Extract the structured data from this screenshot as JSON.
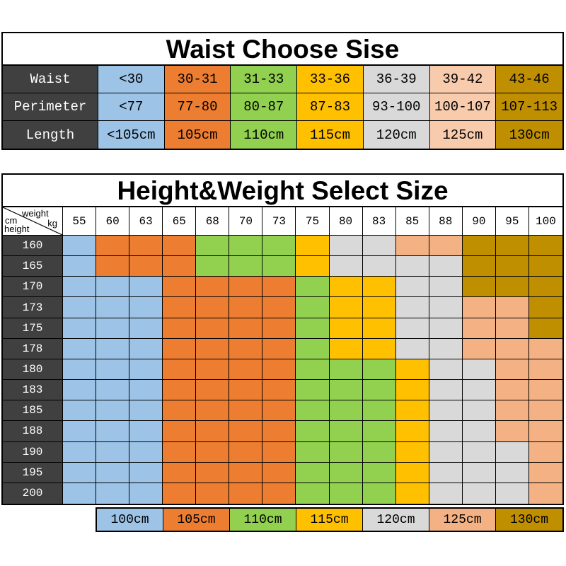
{
  "chart_data": [
    {
      "type": "table",
      "title": "Waist Choose Sise",
      "header_bg": "#404040",
      "column_colors": [
        "#9DC3E6",
        "#ED7D31",
        "#92D050",
        "#FFC000",
        "#D9D9D9",
        "#F8CBAD",
        "#BF8F00"
      ],
      "rows": [
        {
          "label": "Waist",
          "values": [
            "<30",
            "30-31",
            "31-33",
            "33-36",
            "36-39",
            "39-42",
            "43-46"
          ]
        },
        {
          "label": "Perimeter",
          "values": [
            "<77",
            "77-80",
            "80-87",
            "87-83",
            "93-100",
            "100-107",
            "107-113"
          ]
        },
        {
          "label": "Length",
          "values": [
            "<105cm",
            "105cm",
            "110cm",
            "115cm",
            "120cm",
            "125cm",
            "130cm"
          ]
        }
      ]
    },
    {
      "type": "heatmap",
      "title": "Height&Weight Select Size",
      "header_bg": "#404040",
      "corner": {
        "weight_label": "weight",
        "weight_unit": "kg",
        "height_unit": "cm",
        "height_label": "height"
      },
      "weights_kg": [
        "55",
        "60",
        "63",
        "65",
        "68",
        "70",
        "73",
        "75",
        "80",
        "83",
        "85",
        "88",
        "90",
        "95",
        "100"
      ],
      "heights_cm": [
        "160",
        "165",
        "170",
        "173",
        "175",
        "178",
        "180",
        "183",
        "185",
        "188",
        "190",
        "195",
        "200"
      ],
      "cells": [
        "BOOOGGGYRRPPDDD",
        "BOOOGGGYRRRRDDD",
        "BBBOOOOGYYRRDDD",
        "BBBOOOOGYYRRPPD",
        "BBBOOOOGYYRRPPD",
        "BBBOOOOGYYRRPPP",
        "BBBOOOOGGGYRRPP",
        "BBBOOOOGGGYRRPP",
        "BBBOOOOGGGYRRPP",
        "BBBOOOOGGGYRRPP",
        "BBBOOOOGGGYRRRP",
        "BBBOOOOGGGYRRRP",
        "BBBOOOOGGGYRRRP"
      ],
      "code_to_size": {
        "B": "100cm",
        "O": "105cm",
        "G": "110cm",
        "Y": "115cm",
        "R": "120cm",
        "P": "125cm",
        "D": "130cm"
      },
      "code_to_color": {
        "B": "#9DC3E6",
        "O": "#ED7D31",
        "G": "#92D050",
        "Y": "#FFC000",
        "R": "#D9D9D9",
        "P": "#F4B183",
        "D": "#BF8F00"
      },
      "legend": [
        {
          "label": "100cm",
          "color": "#9DC3E6"
        },
        {
          "label": "105cm",
          "color": "#ED7D31"
        },
        {
          "label": "110cm",
          "color": "#92D050"
        },
        {
          "label": "115cm",
          "color": "#FFC000"
        },
        {
          "label": "120cm",
          "color": "#D9D9D9"
        },
        {
          "label": "125cm",
          "color": "#F4B183"
        },
        {
          "label": "130cm",
          "color": "#BF8F00"
        }
      ]
    }
  ]
}
